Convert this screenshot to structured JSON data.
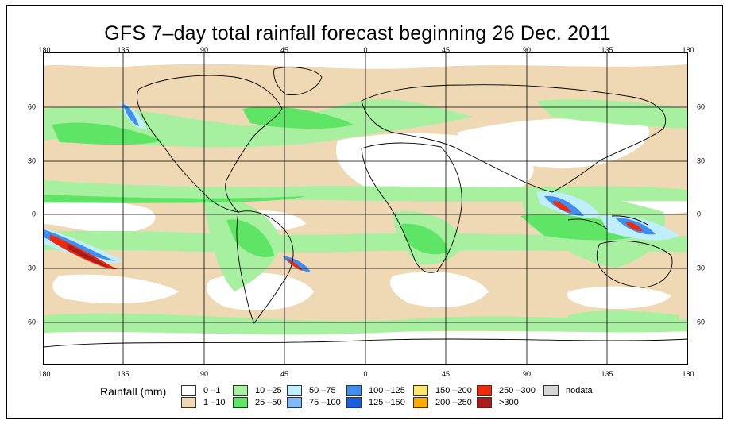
{
  "title": "GFS 7–day total rainfall forecast beginning 26 Dec. 2011",
  "axes": {
    "top_ticks": [
      "180",
      "135",
      "90",
      "45",
      "0",
      "45",
      "90",
      "135",
      "180"
    ],
    "bottom_ticks": [
      "180",
      "135",
      "90",
      "45",
      "0",
      "45",
      "90",
      "135",
      "180"
    ],
    "left_ticks": [
      "60",
      "30",
      "0",
      "30",
      "60"
    ],
    "right_ticks": [
      "60",
      "30",
      "0",
      "30",
      "60"
    ]
  },
  "legend": {
    "title": "Rainfall (mm)",
    "items": [
      {
        "label": "0 –1",
        "color": "#ffffff"
      },
      {
        "label": "1 –10",
        "color": "#efd9b4"
      },
      {
        "label": "10 –25",
        "color": "#a6f0a0"
      },
      {
        "label": "25 –50",
        "color": "#5fe565"
      },
      {
        "label": "50 –75",
        "color": "#bfeefe"
      },
      {
        "label": "75 –100",
        "color": "#7fb9fa"
      },
      {
        "label": "100 –125",
        "color": "#3f8ff2"
      },
      {
        "label": "125 –150",
        "color": "#1a5fe0"
      },
      {
        "label": "150 –200",
        "color": "#fee470"
      },
      {
        "label": "200 –250",
        "color": "#fdaa00"
      },
      {
        "label": "250 –300",
        "color": "#ee2a0a"
      },
      {
        "label": ">300",
        "color": "#a81c1c"
      },
      {
        "label": "nodata",
        "color": "#d6d6d6"
      }
    ]
  }
}
